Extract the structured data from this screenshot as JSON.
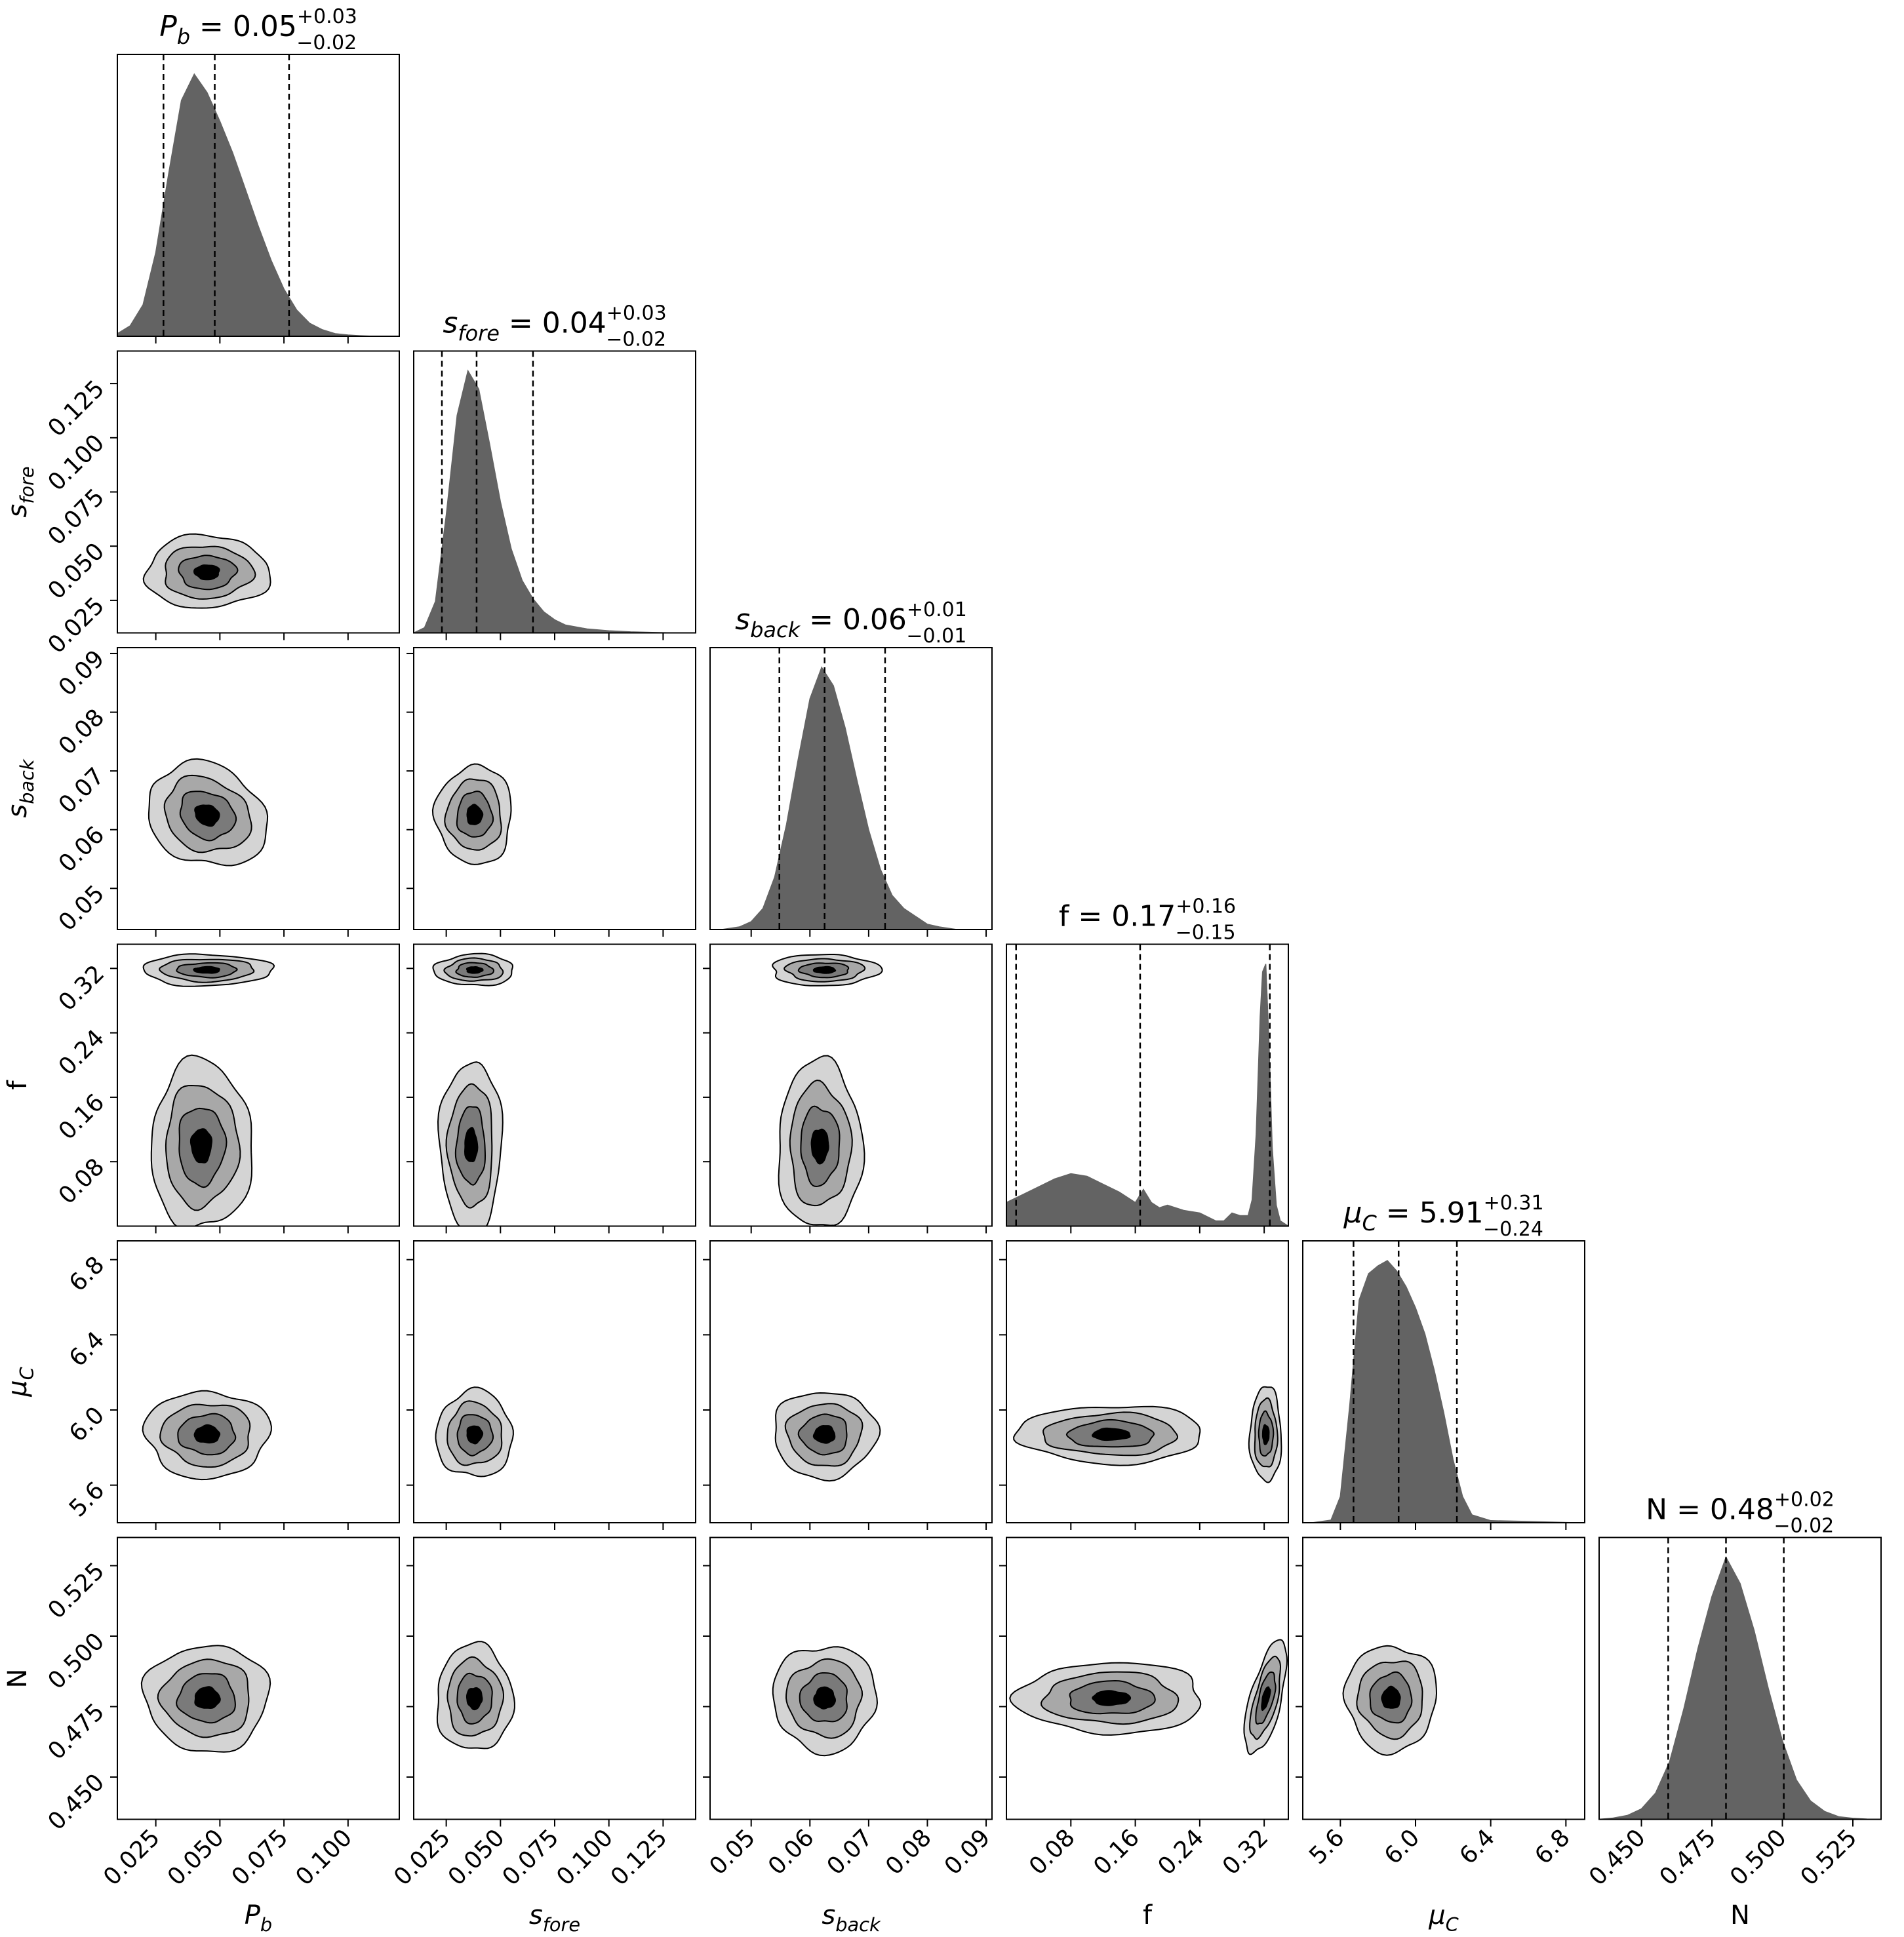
{
  "chart_data": {
    "type": "corner",
    "colors": {
      "histogram_fill": "#636363",
      "contour_levels": [
        "#d4d4d4",
        "#a8a8a8",
        "#7a7a7a",
        "#000000"
      ],
      "contour_line": "#000000",
      "quantile_line": "#000000"
    },
    "parameters": [
      {
        "key": "Pb",
        "label": {
          "base": "P",
          "sub": "b"
        },
        "title": {
          "value": "0.05",
          "plus": "+0.03",
          "minus": "−0.02"
        },
        "range": [
          0.01,
          0.12
        ],
        "ticks": [
          0.025,
          0.05,
          0.075,
          0.1
        ],
        "tick_labels": [
          "0.025",
          "0.050",
          "0.075",
          "0.100"
        ],
        "quantiles": [
          0.028,
          0.048,
          0.077
        ],
        "histogram": {
          "x": [
            0.01,
            0.015,
            0.02,
            0.025,
            0.03,
            0.035,
            0.04,
            0.045,
            0.05,
            0.055,
            0.06,
            0.065,
            0.07,
            0.075,
            0.08,
            0.085,
            0.09,
            0.095,
            0.1,
            0.105,
            0.11
          ],
          "y": [
            0.01,
            0.04,
            0.12,
            0.32,
            0.62,
            0.9,
            1.0,
            0.93,
            0.82,
            0.7,
            0.56,
            0.42,
            0.29,
            0.18,
            0.1,
            0.05,
            0.025,
            0.01,
            0.005,
            0.002,
            0.0
          ]
        },
        "mode": 0.045,
        "sigma": 0.011
      },
      {
        "key": "s_fore",
        "label": {
          "base": "s",
          "sub": "fore"
        },
        "title": {
          "value": "0.04",
          "plus": "+0.03",
          "minus": "−0.02"
        },
        "range": [
          0.01,
          0.14
        ],
        "ticks": [
          0.025,
          0.05,
          0.075,
          0.1,
          0.125
        ],
        "tick_labels": [
          "0.025",
          "0.050",
          "0.075",
          "0.100",
          "0.125"
        ],
        "quantiles": [
          0.023,
          0.039,
          0.065
        ],
        "histogram": {
          "x": [
            0.01,
            0.015,
            0.02,
            0.025,
            0.03,
            0.035,
            0.04,
            0.045,
            0.05,
            0.055,
            0.06,
            0.065,
            0.07,
            0.075,
            0.08,
            0.09,
            0.1,
            0.11,
            0.12,
            0.13
          ],
          "y": [
            0.0,
            0.02,
            0.12,
            0.45,
            0.83,
            1.0,
            0.93,
            0.72,
            0.5,
            0.32,
            0.2,
            0.13,
            0.08,
            0.05,
            0.03,
            0.015,
            0.008,
            0.004,
            0.002,
            0.0
          ]
        },
        "mode": 0.038,
        "sigma": 0.008
      },
      {
        "key": "s_back",
        "label": {
          "base": "s",
          "sub": "back"
        },
        "title": {
          "value": "0.06",
          "plus": "+0.01",
          "minus": "−0.01"
        },
        "range": [
          0.043,
          0.091
        ],
        "ticks": [
          0.05,
          0.06,
          0.07,
          0.08,
          0.09
        ],
        "tick_labels": [
          "0.05",
          "0.06",
          "0.07",
          "0.08",
          "0.09"
        ],
        "quantiles": [
          0.0548,
          0.0625,
          0.0728
        ],
        "histogram": {
          "x": [
            0.045,
            0.048,
            0.05,
            0.052,
            0.054,
            0.056,
            0.058,
            0.06,
            0.062,
            0.064,
            0.066,
            0.068,
            0.07,
            0.072,
            0.074,
            0.076,
            0.078,
            0.08,
            0.082,
            0.085
          ],
          "y": [
            0.0,
            0.01,
            0.03,
            0.08,
            0.2,
            0.4,
            0.65,
            0.88,
            1.0,
            0.93,
            0.77,
            0.57,
            0.38,
            0.23,
            0.13,
            0.08,
            0.05,
            0.02,
            0.01,
            0.0
          ]
        },
        "mode": 0.0625,
        "sigma": 0.004
      },
      {
        "key": "f",
        "label": {
          "base": "f",
          "sub": ""
        },
        "title": {
          "value": "0.17",
          "plus": "+0.16",
          "minus": "−0.15"
        },
        "range": [
          0.0,
          0.35
        ],
        "ticks": [
          0.08,
          0.16,
          0.24,
          0.32
        ],
        "tick_labels": [
          "0.08",
          "0.16",
          "0.24",
          "0.32"
        ],
        "quantiles": [
          0.012,
          0.166,
          0.327
        ],
        "histogram": {
          "x": [
            0.0,
            0.02,
            0.04,
            0.06,
            0.08,
            0.1,
            0.12,
            0.14,
            0.16,
            0.17,
            0.18,
            0.19,
            0.2,
            0.22,
            0.24,
            0.26,
            0.27,
            0.28,
            0.29,
            0.3,
            0.305,
            0.31,
            0.315,
            0.318,
            0.322,
            0.326,
            0.33,
            0.335,
            0.34,
            0.35
          ],
          "y": [
            0.09,
            0.12,
            0.15,
            0.18,
            0.2,
            0.19,
            0.16,
            0.13,
            0.09,
            0.14,
            0.09,
            0.07,
            0.08,
            0.06,
            0.05,
            0.02,
            0.02,
            0.05,
            0.04,
            0.04,
            0.1,
            0.35,
            0.8,
            0.97,
            1.0,
            0.7,
            0.3,
            0.08,
            0.02,
            0.0
          ]
        },
        "mode": 0.322,
        "sigma": 0.005
      },
      {
        "key": "mu_C",
        "label": {
          "base": "μ",
          "sub": "C"
        },
        "title": {
          "value": "5.91",
          "plus": "+0.31",
          "minus": "−0.24"
        },
        "range": [
          5.4,
          6.9
        ],
        "ticks": [
          5.6,
          6.0,
          6.4,
          6.8
        ],
        "tick_labels": [
          "5.6",
          "6.0",
          "6.4",
          "6.8"
        ],
        "quantiles": [
          5.67,
          5.91,
          6.22
        ],
        "histogram": {
          "x": [
            5.45,
            5.55,
            5.6,
            5.65,
            5.7,
            5.75,
            5.8,
            5.85,
            5.9,
            5.95,
            6.0,
            6.05,
            6.1,
            6.15,
            6.2,
            6.25,
            6.3,
            6.4,
            6.6,
            6.85
          ],
          "y": [
            0.0,
            0.01,
            0.1,
            0.45,
            0.85,
            0.95,
            0.98,
            1.0,
            0.96,
            0.9,
            0.82,
            0.72,
            0.58,
            0.42,
            0.24,
            0.1,
            0.03,
            0.008,
            0.005,
            0.0
          ]
        },
        "mode": 5.87,
        "sigma": 0.11
      },
      {
        "key": "N",
        "label": {
          "base": "N",
          "sub": ""
        },
        "title": {
          "value": "0.48",
          "plus": "+0.02",
          "minus": "−0.02"
        },
        "range": [
          0.435,
          0.535
        ],
        "ticks": [
          0.45,
          0.475,
          0.5,
          0.525
        ],
        "tick_labels": [
          "0.450",
          "0.475",
          "0.500",
          "0.525"
        ],
        "quantiles": [
          0.4595,
          0.48,
          0.5005
        ],
        "histogram": {
          "x": [
            0.435,
            0.44,
            0.445,
            0.45,
            0.455,
            0.46,
            0.465,
            0.47,
            0.475,
            0.48,
            0.485,
            0.49,
            0.495,
            0.5,
            0.505,
            0.51,
            0.515,
            0.52,
            0.525,
            0.53,
            0.535
          ],
          "y": [
            0.0,
            0.005,
            0.015,
            0.04,
            0.1,
            0.22,
            0.42,
            0.65,
            0.85,
            1.0,
            0.9,
            0.72,
            0.5,
            0.3,
            0.15,
            0.07,
            0.03,
            0.01,
            0.004,
            0.001,
            0.0
          ]
        },
        "mode": 0.478,
        "sigma": 0.009
      }
    ]
  }
}
